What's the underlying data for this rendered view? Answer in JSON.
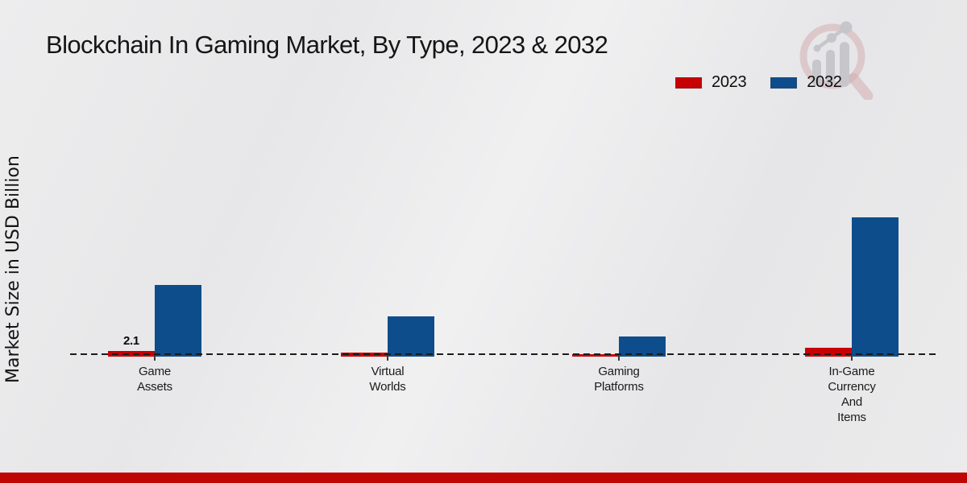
{
  "header": {
    "title": "Blockchain In Gaming Market, By Type, 2023 & 2032"
  },
  "page": {
    "accent_bar_color": "#c00505"
  },
  "watermark": {
    "icon": "magnifier-over-bar-chart-logo",
    "ring_color": "#d4aeb2",
    "chart_color": "#c5c5c9"
  },
  "chart_data": {
    "type": "bar",
    "title": "Blockchain In Gaming Market, By Type, 2023 & 2032",
    "xlabel": "",
    "ylabel": "Market Size in USD Billion",
    "categories": [
      "Game Assets",
      "Virtual Worlds",
      "Gaming Platforms",
      "In-Game Currency And Items"
    ],
    "series": [
      {
        "name": "2023",
        "color": "#c70103",
        "values": [
          2.1,
          1.5,
          0.9,
          3.2
        ]
      },
      {
        "name": "2032",
        "color": "#0d4d8c",
        "values": [
          26.7,
          15.1,
          7.5,
          51.8
        ]
      }
    ],
    "annotations": [
      {
        "text": "2.1",
        "category_index": 0,
        "series": "2023"
      }
    ],
    "grid": false,
    "baseline_style": "dashed",
    "legend_position": "top-right",
    "yaxis_tick_labels_visible": false,
    "note": "Only the 2.1 data label is printed on the chart; other series values are estimated from bar heights."
  }
}
